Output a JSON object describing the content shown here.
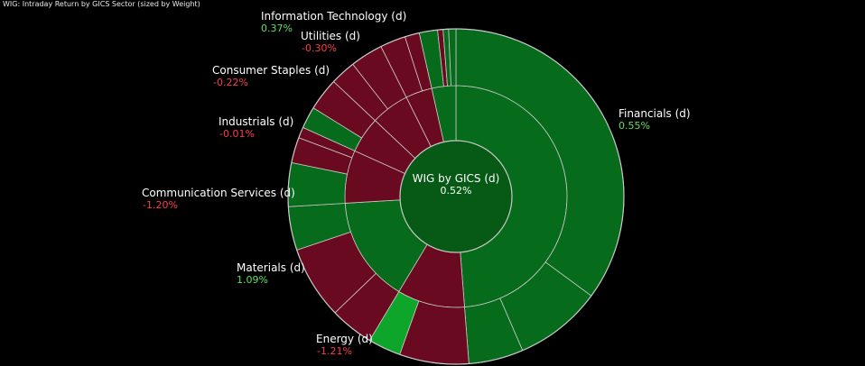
{
  "header": {
    "title": "WIG: Intraday Return by GICS Sector (sized by Weight)"
  },
  "colors": {
    "positive_text": "#5ee05e",
    "negative_text": "#ff3b4e",
    "neg_fill": "#6a0a20",
    "pos_fill": "#066b1a",
    "pos_fill_strong": "#0da52a",
    "center_fill": "#065a16",
    "border": "#c8c8c8"
  },
  "chart_data": {
    "type": "sunburst",
    "title": "WIG: Intraday Return by GICS Sector (sized by Weight)",
    "center": {
      "label": "WIG by GICS (d)",
      "value": "0.52%"
    },
    "sectors": [
      {
        "name": "Financials (d)",
        "value": "0.55%",
        "weight": 139
      },
      {
        "name": "Energy (d)",
        "value": "-1.21%",
        "weight": 28
      },
      {
        "name": "Materials (d)",
        "value": "1.09%",
        "weight": 44
      },
      {
        "name": "Communication Services (d)",
        "value": "-1.20%",
        "weight": 22
      },
      {
        "name": "Industrials (d)",
        "value": "-0.01%",
        "weight": 15
      },
      {
        "name": "Consumer Staples (d)",
        "value": "-0.22%",
        "weight": 16
      },
      {
        "name": "Utilities (d)",
        "value": "-0.30%",
        "weight": 11
      },
      {
        "name": "Information Technology (d)",
        "value": "0.37%",
        "weight": 10
      }
    ],
    "constituents": [
      {
        "sector": 0,
        "weight": 100,
        "tone": "pos"
      },
      {
        "sector": 0,
        "weight": 24,
        "tone": "pos"
      },
      {
        "sector": 0,
        "weight": 15,
        "tone": "pos"
      },
      {
        "sector": 1,
        "weight": 19,
        "tone": "neg"
      },
      {
        "sector": 1,
        "weight": 9,
        "tone": "pos_strong"
      },
      {
        "sector": 2,
        "weight": 12,
        "tone": "neg"
      },
      {
        "sector": 2,
        "weight": 20,
        "tone": "neg"
      },
      {
        "sector": 2,
        "weight": 12,
        "tone": "pos"
      },
      {
        "sector": 3,
        "weight": 12,
        "tone": "pos"
      },
      {
        "sector": 3,
        "weight": 7,
        "tone": "neg"
      },
      {
        "sector": 3,
        "weight": 3,
        "tone": "neg"
      },
      {
        "sector": 4,
        "weight": 6,
        "tone": "pos"
      },
      {
        "sector": 4,
        "weight": 9,
        "tone": "neg"
      },
      {
        "sector": 5,
        "weight": 7,
        "tone": "neg"
      },
      {
        "sector": 5,
        "weight": 9,
        "tone": "neg"
      },
      {
        "sector": 6,
        "weight": 7,
        "tone": "neg"
      },
      {
        "sector": 6,
        "weight": 4,
        "tone": "neg"
      },
      {
        "sector": 7,
        "weight": 5,
        "tone": "pos"
      },
      {
        "sector": 7,
        "weight": 1.5,
        "tone": "neg"
      },
      {
        "sector": 7,
        "weight": 1.5,
        "tone": "pos"
      },
      {
        "sector": 7,
        "weight": 2,
        "tone": "pos"
      }
    ]
  }
}
